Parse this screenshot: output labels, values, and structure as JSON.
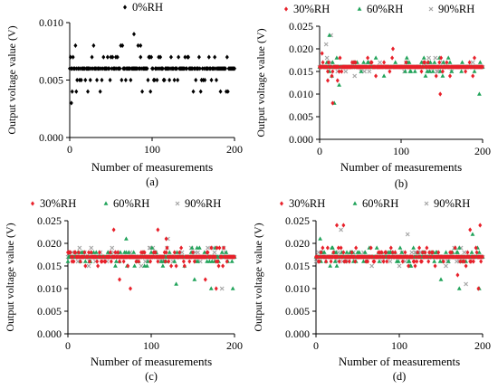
{
  "colors": {
    "0%RH": "#000000",
    "30%RH": "#e8202a",
    "60%RH": "#21a35a",
    "90%RH": "#a6a6a6"
  },
  "chart_data": [
    {
      "id": "a",
      "type": "scatter",
      "caption": "(a)",
      "xlabel": "Number of measurements",
      "ylabel": "Output voltage value (V)",
      "xlim": [
        0,
        200
      ],
      "ylim": [
        0,
        0.01
      ],
      "xticks": [
        "0",
        "100",
        "200"
      ],
      "yticks": [
        "0.000",
        "0.005",
        "0.010"
      ],
      "series": [
        {
          "name": "0%RH",
          "marker": "diamond",
          "base": 0.006,
          "jitter": 0.001,
          "noise": 0.35,
          "extra": [
            [
              2,
              0.003
            ],
            [
              3,
              0.004
            ],
            [
              8,
              0.004
            ],
            [
              22,
              0.004
            ],
            [
              78,
              0.009
            ],
            [
              86,
              0.008
            ],
            [
              183,
              0.004
            ]
          ]
        }
      ]
    },
    {
      "id": "b",
      "type": "scatter",
      "caption": "(b)",
      "xlabel": "Number of measurements",
      "ylabel": "Output voltage value (V)",
      "xlim": [
        0,
        200
      ],
      "ylim": [
        0,
        0.025
      ],
      "xticks": [
        "0",
        "100",
        "200"
      ],
      "yticks": [
        "0.000",
        "0.005",
        "0.010",
        "0.015",
        "0.020",
        "0.025"
      ],
      "series": [
        {
          "name": "30%RH",
          "marker": "diamond",
          "base": 0.016,
          "jitter": 0.001,
          "noise": 0.18,
          "extra": [
            [
              3,
              0.019
            ],
            [
              10,
              0.013
            ],
            [
              16,
              0.008
            ],
            [
              22,
              0.013
            ],
            [
              90,
              0.02
            ],
            [
              148,
              0.01
            ],
            [
              190,
              0.018
            ]
          ]
        },
        {
          "name": "60%RH",
          "marker": "triangle",
          "base": 0.016,
          "jitter": 0.001,
          "noise": 0.18,
          "extra": [
            [
              12,
              0.023
            ],
            [
              15,
              0.014
            ],
            [
              18,
              0.008
            ],
            [
              24,
              0.012
            ],
            [
              196,
              0.01
            ]
          ]
        },
        {
          "name": "90%RH",
          "marker": "x",
          "base": 0.016,
          "jitter": 0.001,
          "noise": 0.08,
          "extra": [
            [
              8,
              0.021
            ],
            [
              14,
              0.023
            ]
          ]
        }
      ]
    },
    {
      "id": "c",
      "type": "scatter",
      "caption": "(c)",
      "xlabel": "Number of measurements",
      "ylabel": "Output voltage value (V)",
      "xlim": [
        0,
        200
      ],
      "ylim": [
        0,
        0.025
      ],
      "xticks": [
        "0",
        "100",
        "200"
      ],
      "yticks": [
        "0.000",
        "0.005",
        "0.010",
        "0.015",
        "0.020",
        "0.025"
      ],
      "series": [
        {
          "name": "30%RH",
          "marker": "diamond",
          "base": 0.017,
          "jitter": 0.001,
          "noise": 0.3,
          "extra": [
            [
              55,
              0.023
            ],
            [
              62,
              0.012
            ],
            [
              75,
              0.01
            ],
            [
              108,
              0.023
            ],
            [
              118,
              0.021
            ],
            [
              165,
              0.012
            ],
            [
              178,
              0.01
            ]
          ]
        },
        {
          "name": "60%RH",
          "marker": "triangle",
          "base": 0.017,
          "jitter": 0.001,
          "noise": 0.3,
          "extra": [
            [
              70,
              0.021
            ],
            [
              92,
              0.015
            ],
            [
              130,
              0.011
            ],
            [
              152,
              0.012
            ],
            [
              172,
              0.01
            ],
            [
              198,
              0.01
            ]
          ]
        },
        {
          "name": "90%RH",
          "marker": "x",
          "base": 0.017,
          "jitter": 0.001,
          "noise": 0.15,
          "extra": [
            [
              120,
              0.021
            ],
            [
              185,
              0.01
            ]
          ]
        }
      ]
    },
    {
      "id": "d",
      "type": "scatter",
      "caption": "(d)",
      "xlabel": "Number of measurements",
      "ylabel": "Output voltage value (V)",
      "xlim": [
        0,
        200
      ],
      "ylim": [
        0,
        0.025
      ],
      "xticks": [
        "0",
        "100",
        "200"
      ],
      "yticks": [
        "0.000",
        "0.005",
        "0.010",
        "0.015",
        "0.020",
        "0.025"
      ],
      "series": [
        {
          "name": "30%RH",
          "marker": "diamond",
          "base": 0.017,
          "jitter": 0.001,
          "noise": 0.35,
          "extra": [
            [
              25,
              0.024
            ],
            [
              33,
              0.024
            ],
            [
              170,
              0.013
            ],
            [
              185,
              0.023
            ],
            [
              195,
              0.01
            ],
            [
              197,
              0.024
            ]
          ]
        },
        {
          "name": "60%RH",
          "marker": "triangle",
          "base": 0.017,
          "jitter": 0.001,
          "noise": 0.35,
          "extra": [
            [
              5,
              0.021
            ],
            [
              150,
              0.012
            ],
            [
              172,
              0.01
            ],
            [
              188,
              0.022
            ],
            [
              196,
              0.01
            ]
          ]
        },
        {
          "name": "90%RH",
          "marker": "x",
          "base": 0.017,
          "jitter": 0.001,
          "noise": 0.12,
          "extra": [
            [
              30,
              0.023
            ],
            [
              110,
              0.022
            ],
            [
              180,
              0.011
            ]
          ]
        }
      ]
    }
  ]
}
